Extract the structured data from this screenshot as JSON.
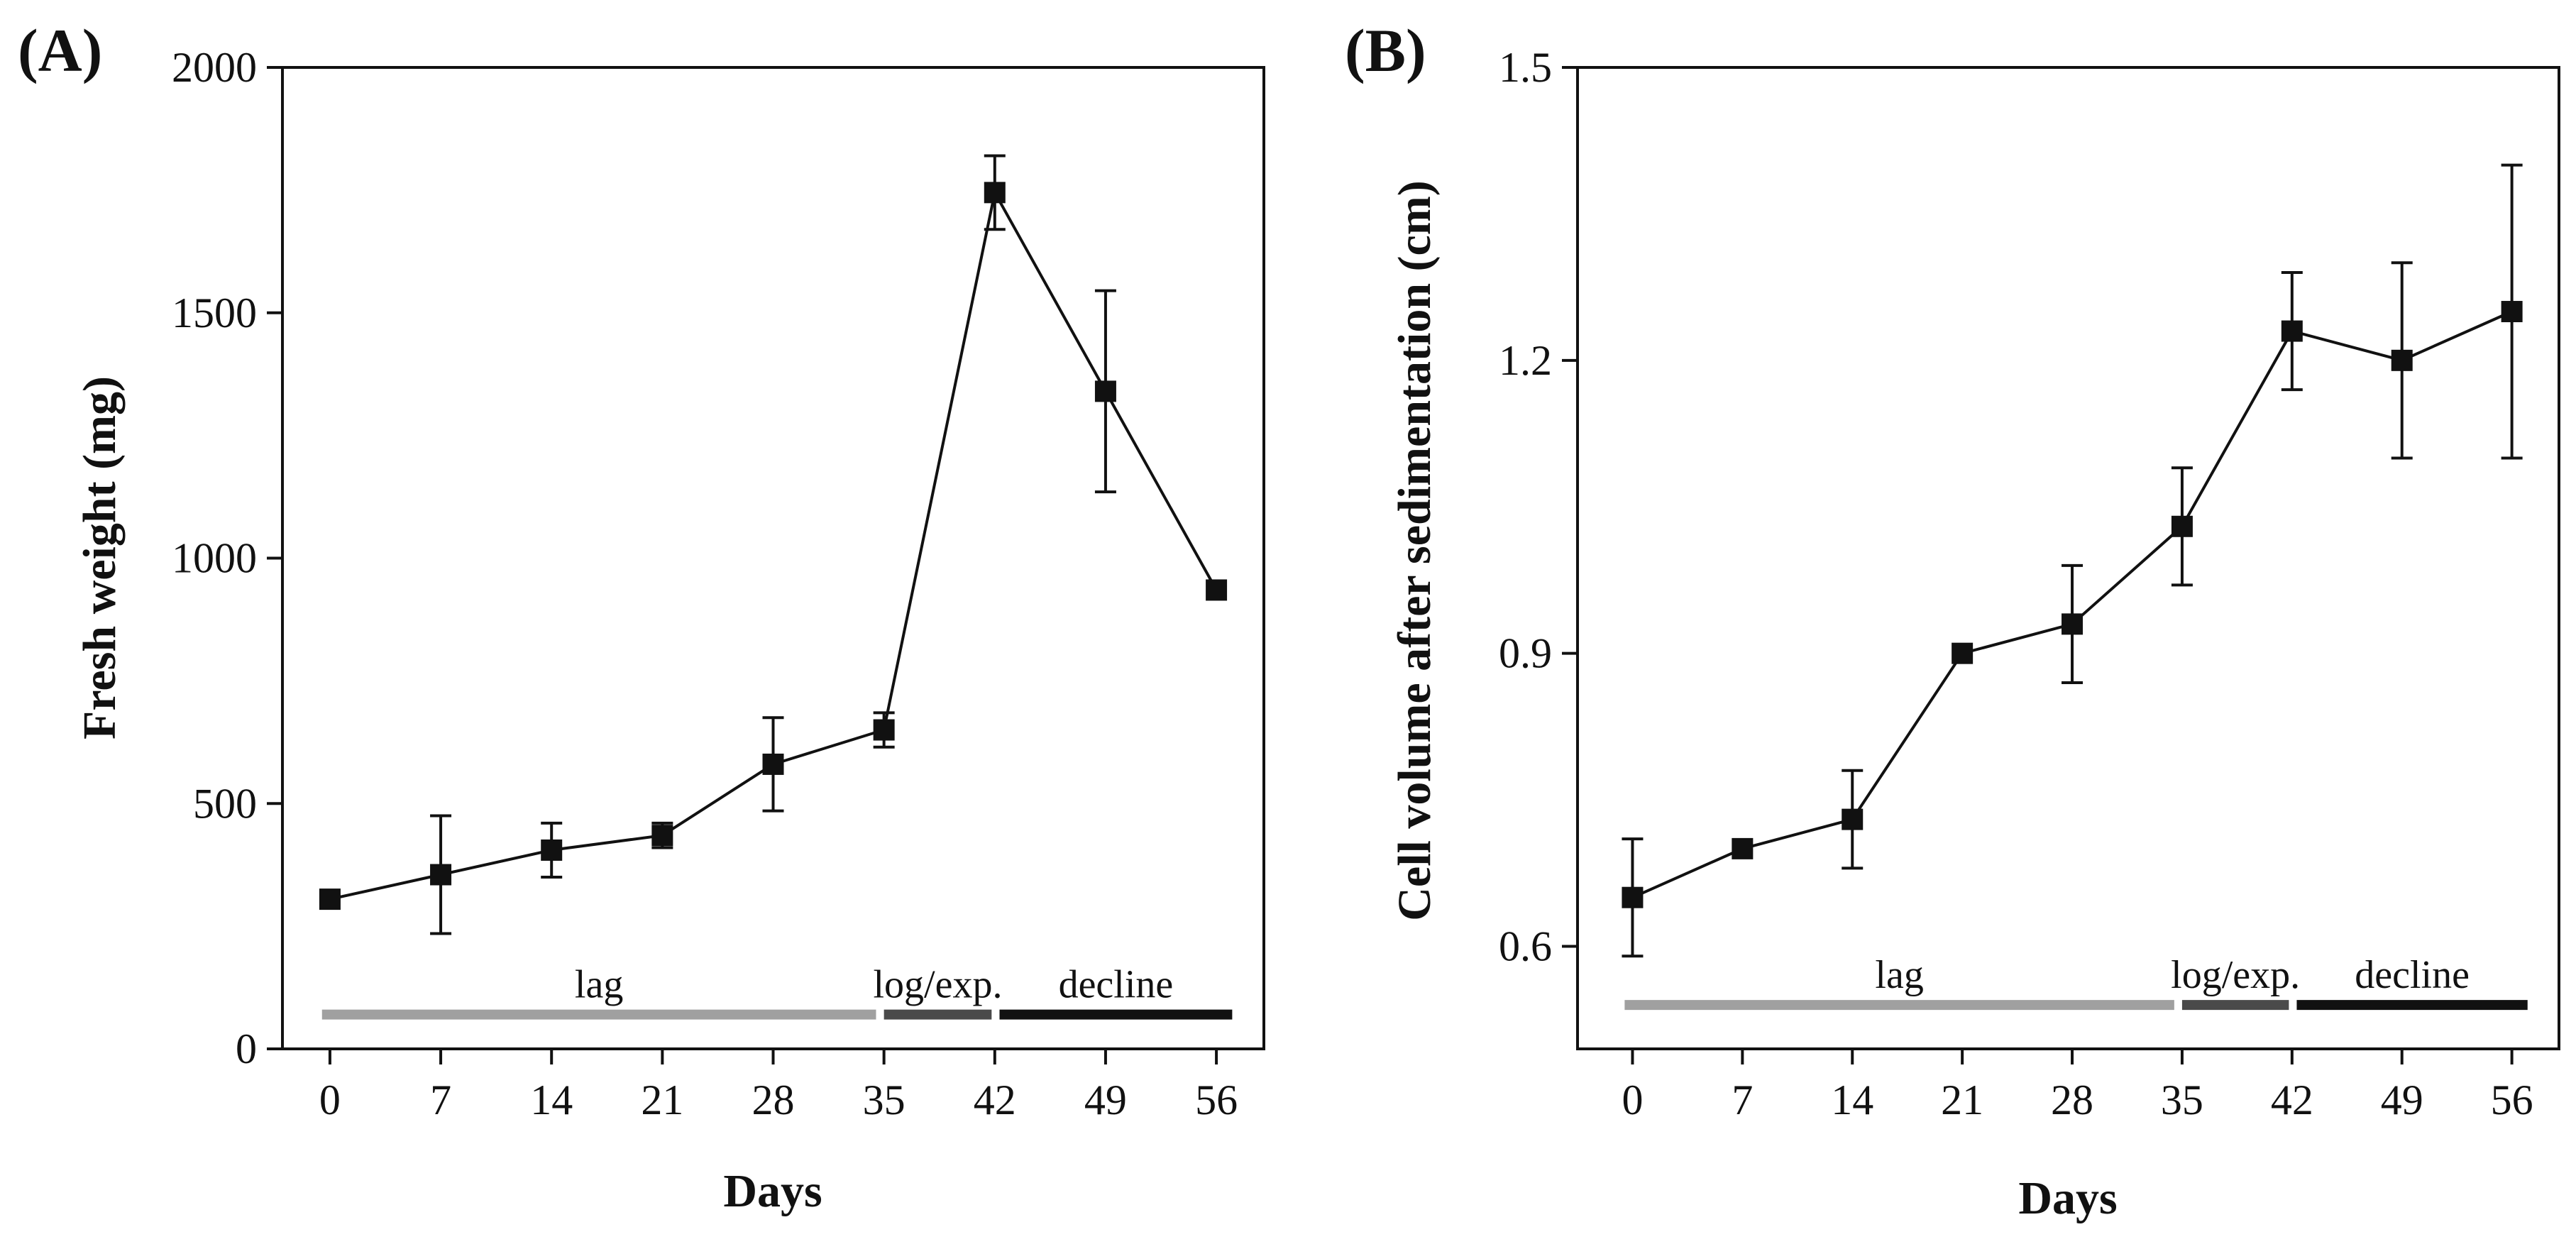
{
  "chart_data": [
    {
      "type": "line",
      "panel_label": "(A)",
      "title": "",
      "xlabel": "Days",
      "ylabel": "Fresh weight (mg)",
      "x_ticks": [
        "0",
        "7",
        "14",
        "21",
        "28",
        "35",
        "42",
        "49",
        "56"
      ],
      "y_ticks": [
        "0",
        "500",
        "1000",
        "1500",
        "2000"
      ],
      "xlim": [
        -3,
        59
      ],
      "ylim": [
        0,
        2000
      ],
      "grid": false,
      "series": [
        {
          "name": "Fresh weight",
          "x": [
            0,
            7,
            14,
            21,
            28,
            35,
            42,
            49,
            56
          ],
          "y": [
            305,
            355,
            405,
            435,
            580,
            650,
            1745,
            1340,
            935
          ],
          "error": [
            0,
            120,
            55,
            25,
            95,
            35,
            75,
            205,
            0
          ],
          "color": "#111111",
          "marker": "square"
        }
      ],
      "phases": [
        {
          "label": "lag",
          "x_start": -0.5,
          "x_end": 34.5,
          "color": "#a0a0a0"
        },
        {
          "label": "log/exp.",
          "x_start": 35,
          "x_end": 41.8,
          "color": "#4a4a4a"
        },
        {
          "label": "decline",
          "x_start": 42.3,
          "x_end": 57.0,
          "color": "#111111"
        }
      ],
      "phase_bar_value": 70
    },
    {
      "type": "line",
      "panel_label": "(B)",
      "title": "",
      "xlabel": "Days",
      "ylabel": "Cell volume after sedimentation (cm)",
      "x_ticks": [
        "0",
        "7",
        "14",
        "21",
        "28",
        "35",
        "42",
        "49",
        "56"
      ],
      "y_ticks": [
        "0.6",
        "0.9",
        "1.2",
        "1.5"
      ],
      "xlim": [
        -3.5,
        59
      ],
      "ylim": [
        0.495,
        1.5
      ],
      "grid": false,
      "series": [
        {
          "name": "Cell volume",
          "x": [
            0,
            7,
            14,
            21,
            28,
            35,
            42,
            49,
            56
          ],
          "y": [
            0.65,
            0.7,
            0.73,
            0.9,
            0.93,
            1.03,
            1.23,
            1.2,
            1.25
          ],
          "error": [
            0.06,
            0,
            0.05,
            0,
            0.06,
            0.06,
            0.06,
            0.1,
            0.15
          ],
          "color": "#111111",
          "marker": "square"
        }
      ],
      "phases": [
        {
          "label": "lag",
          "x_start": -0.5,
          "x_end": 34.5,
          "color": "#a0a0a0"
        },
        {
          "label": "log/exp.",
          "x_start": 35,
          "x_end": 41.8,
          "color": "#4a4a4a"
        },
        {
          "label": "decline",
          "x_start": 42.3,
          "x_end": 57.0,
          "color": "#111111"
        }
      ],
      "phase_bar_value": 0.54
    }
  ]
}
